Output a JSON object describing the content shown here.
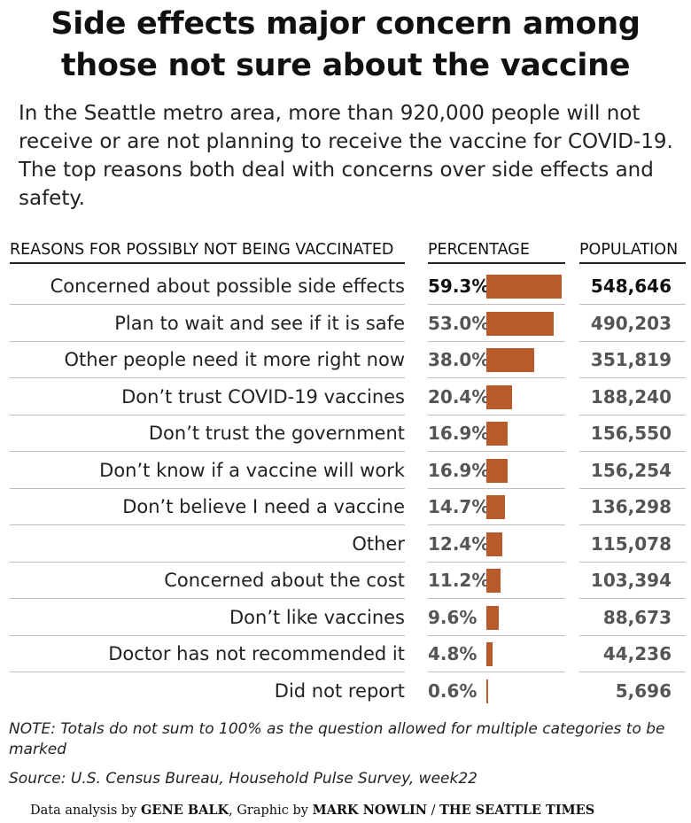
{
  "title_line1": "Side effects major concern among",
  "title_line2": "those not sure about the vaccine",
  "subtitle": "In the Seattle metro area, more than 920,000 people will not receive or are not planning to receive the vaccine for COVID-19. The top reasons both deal with concerns over side effects and safety.",
  "col_reasons": "REASONS FOR POSSIBLY NOT BEING VACCINATED",
  "col_percentage": "PERCENTAGE",
  "col_population": "POPULATION",
  "chart_data": {
    "type": "bar",
    "categories": [
      "Concerned about possible side effects",
      "Plan to wait and see if it is safe",
      "Other people need it more right now",
      "Don’t trust COVID-19 vaccines",
      "Don’t trust the government",
      "Don’t know if a vaccine will work",
      "Don’t believe I need a vaccine",
      "Other",
      "Concerned about the cost",
      "Don’t like vaccines",
      "Doctor has not recommended it",
      "Did not report"
    ],
    "values": [
      59.3,
      53.0,
      38.0,
      20.4,
      16.9,
      16.9,
      14.7,
      12.4,
      11.2,
      9.6,
      4.8,
      0.6
    ],
    "percent_labels": [
      "59.3%",
      "53.0%",
      "38.0%",
      "20.4%",
      "16.9%",
      "16.9%",
      "14.7%",
      "12.4%",
      "11.2%",
      "9.6%",
      "4.8%",
      "0.6%"
    ],
    "population": [
      "548,646",
      "490,203",
      "351,819",
      "188,240",
      "156,550",
      "156,254",
      "136,298",
      "115,078",
      "103,394",
      "88,673",
      "44,236",
      "5,696"
    ],
    "bar_color": "#b85a2b",
    "xlim": [
      0,
      59.3
    ]
  },
  "note": "NOTE: Totals do not sum to 100% as the question allowed for multiple categories to be marked",
  "source": "Source: U.S. Census Bureau, Household Pulse Survey, week22",
  "credit": {
    "prefix": "Data analysis by ",
    "analyst": "GENE BALK",
    "middle": ", Graphic by ",
    "designer": "MARK NOWLIN",
    "sep": " / ",
    "outlet": "THE SEATTLE TIMES"
  }
}
